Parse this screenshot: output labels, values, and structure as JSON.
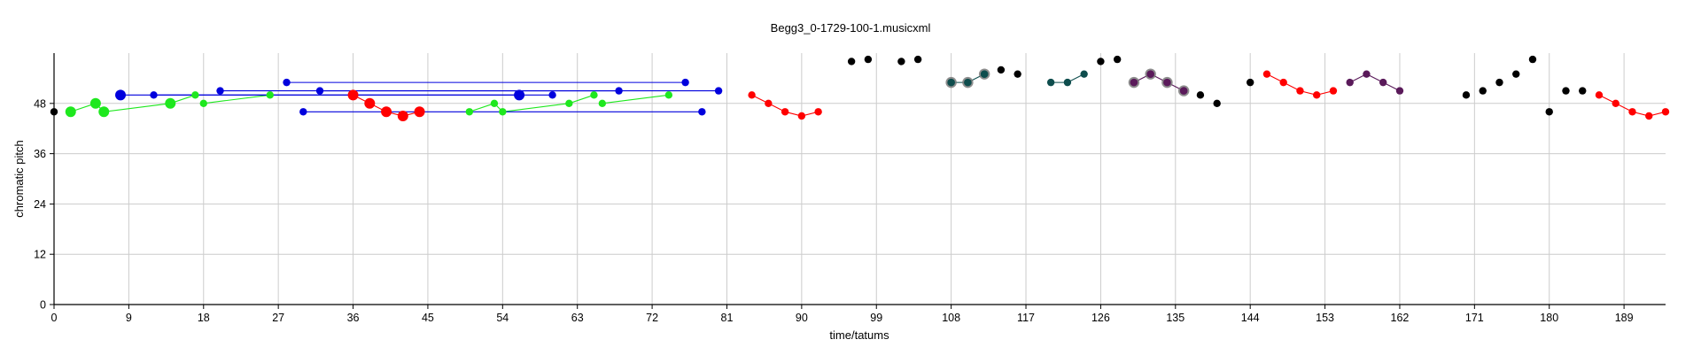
{
  "chart_data": {
    "type": "scatter",
    "title": "Begg3_0-1729-100-1.musicxml",
    "xlabel": "time/tatums",
    "ylabel": "chromatic pitch",
    "xlim": [
      0,
      194
    ],
    "ylim": [
      0,
      60
    ],
    "xticks": [
      0,
      9,
      18,
      27,
      36,
      45,
      54,
      63,
      72,
      81,
      90,
      99,
      108,
      117,
      126,
      135,
      144,
      153,
      162,
      171,
      180,
      189
    ],
    "yticks": [
      0,
      12,
      24,
      36,
      48
    ],
    "grid": true,
    "legend": "none",
    "colors": {
      "black": "#000000",
      "green": "#1ee81e",
      "blue": "#0000dd",
      "red": "#ff0000",
      "teal": "#0e4d4d",
      "purple": "#5a1a5a"
    },
    "series": [
      {
        "color": "green",
        "kind": "line",
        "points": [
          [
            2,
            46
          ],
          [
            5,
            48
          ],
          [
            6,
            46
          ],
          [
            14,
            48
          ],
          [
            17,
            50
          ]
        ]
      },
      {
        "color": "green",
        "kind": "line",
        "points": [
          [
            18,
            48
          ],
          [
            26,
            50
          ]
        ]
      },
      {
        "color": "green",
        "kind": "line",
        "points": [
          [
            50,
            46
          ],
          [
            53,
            48
          ],
          [
            54,
            46
          ],
          [
            62,
            48
          ],
          [
            65,
            50
          ]
        ]
      },
      {
        "color": "green",
        "kind": "line",
        "points": [
          [
            66,
            48
          ],
          [
            74,
            50
          ]
        ]
      },
      {
        "color": "blue",
        "kind": "line",
        "points": [
          [
            8,
            50
          ],
          [
            56,
            50
          ]
        ]
      },
      {
        "color": "blue",
        "kind": "line",
        "points": [
          [
            12,
            50
          ],
          [
            60,
            50
          ]
        ]
      },
      {
        "color": "blue",
        "kind": "line",
        "points": [
          [
            20,
            51
          ],
          [
            68,
            51
          ]
        ]
      },
      {
        "color": "blue",
        "kind": "line",
        "points": [
          [
            28,
            53
          ],
          [
            76,
            53
          ]
        ]
      },
      {
        "color": "blue",
        "kind": "line",
        "points": [
          [
            30,
            46
          ],
          [
            78,
            46
          ]
        ]
      },
      {
        "color": "blue",
        "kind": "line",
        "points": [
          [
            32,
            51
          ],
          [
            80,
            51
          ]
        ]
      },
      {
        "color": "red",
        "kind": "line",
        "points": [
          [
            36,
            50
          ],
          [
            38,
            48
          ],
          [
            40,
            46
          ],
          [
            42,
            45
          ],
          [
            44,
            46
          ]
        ]
      },
      {
        "color": "red",
        "kind": "line",
        "points": [
          [
            84,
            50
          ],
          [
            86,
            48
          ],
          [
            88,
            46
          ],
          [
            90,
            45
          ],
          [
            92,
            46
          ]
        ]
      },
      {
        "color": "teal",
        "kind": "line",
        "points": [
          [
            108,
            53
          ],
          [
            110,
            53
          ],
          [
            112,
            55
          ]
        ]
      },
      {
        "color": "teal",
        "kind": "line",
        "points": [
          [
            120,
            53
          ],
          [
            122,
            53
          ],
          [
            124,
            55
          ]
        ]
      },
      {
        "color": "purple",
        "kind": "line",
        "points": [
          [
            130,
            53
          ],
          [
            132,
            55
          ],
          [
            134,
            53
          ],
          [
            136,
            51
          ]
        ]
      },
      {
        "color": "red",
        "kind": "line",
        "points": [
          [
            146,
            55
          ],
          [
            148,
            53
          ],
          [
            150,
            51
          ],
          [
            152,
            50
          ],
          [
            154,
            51
          ]
        ]
      },
      {
        "color": "purple",
        "kind": "line",
        "points": [
          [
            156,
            53
          ],
          [
            158,
            55
          ],
          [
            160,
            53
          ],
          [
            162,
            51
          ]
        ]
      },
      {
        "color": "red",
        "kind": "line",
        "points": [
          [
            186,
            50
          ],
          [
            188,
            48
          ],
          [
            190,
            46
          ],
          [
            192,
            45
          ],
          [
            194,
            46
          ]
        ]
      },
      {
        "color": "black",
        "kind": "points",
        "points": [
          [
            0,
            46
          ],
          [
            96,
            58
          ],
          [
            98,
            58.5
          ],
          [
            102,
            58
          ],
          [
            104,
            58.5
          ],
          [
            114,
            56
          ],
          [
            116,
            55
          ],
          [
            126,
            58
          ],
          [
            128,
            58.5
          ],
          [
            138,
            50
          ],
          [
            140,
            48
          ],
          [
            144,
            53
          ],
          [
            170,
            50
          ],
          [
            172,
            51
          ],
          [
            174,
            53
          ],
          [
            176,
            55
          ],
          [
            178,
            58.5
          ],
          [
            180,
            46
          ],
          [
            182,
            51
          ],
          [
            184,
            51
          ]
        ]
      }
    ],
    "large_markers": [
      [
        2,
        46,
        "green"
      ],
      [
        5,
        48,
        "green"
      ],
      [
        6,
        46,
        "green"
      ],
      [
        14,
        48,
        "green"
      ],
      [
        8,
        50,
        "blue"
      ],
      [
        56,
        50,
        "blue"
      ],
      [
        36,
        50,
        "red"
      ],
      [
        38,
        48,
        "red"
      ],
      [
        40,
        46,
        "red"
      ],
      [
        42,
        45,
        "red"
      ],
      [
        44,
        46,
        "red"
      ]
    ],
    "ringed_markers": [
      [
        108,
        53,
        "teal"
      ],
      [
        110,
        53,
        "teal"
      ],
      [
        112,
        55,
        "teal"
      ],
      [
        130,
        53,
        "purple"
      ],
      [
        132,
        55,
        "purple"
      ],
      [
        134,
        53,
        "purple"
      ],
      [
        136,
        51,
        "purple"
      ]
    ]
  }
}
